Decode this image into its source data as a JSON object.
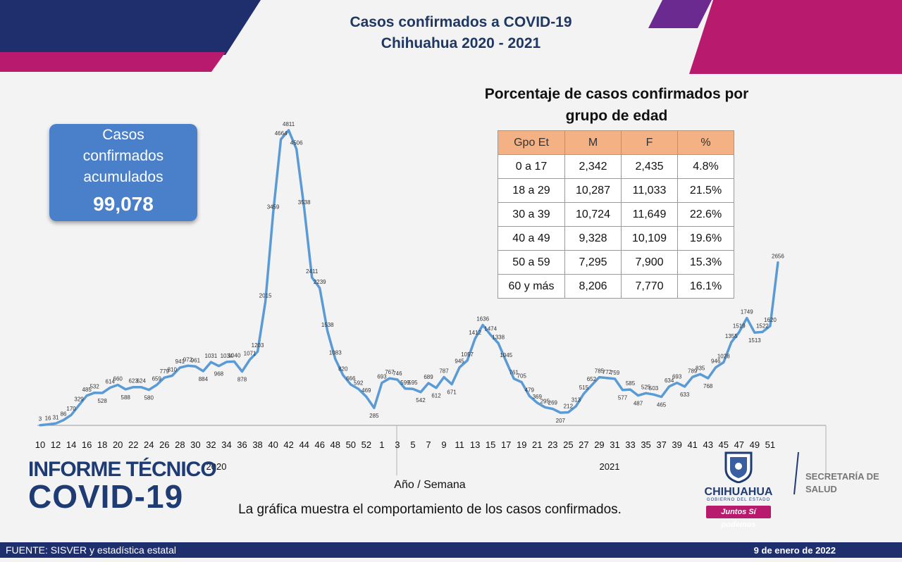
{
  "header": {
    "title_line1": "Casos confirmados a COVID-19",
    "title_line2": "Chihuahua 2020 - 2021"
  },
  "summary": {
    "label_line1": "Casos",
    "label_line2": "confirmados",
    "label_line3": "acumulados",
    "value": "99,078"
  },
  "age_table": {
    "title_line1": "Porcentaje de casos confirmados por",
    "title_line2": "grupo de edad",
    "headers": [
      "Gpo Et",
      "M",
      "F",
      "%"
    ],
    "rows": [
      [
        "0 a 17",
        "2,342",
        "2,435",
        "4.8%"
      ],
      [
        "18 a 29",
        "10,287",
        "11,033",
        "21.5%"
      ],
      [
        "30 a 39",
        "10,724",
        "11,649",
        "22.6%"
      ],
      [
        "40 a 49",
        "9,328",
        "10,109",
        "19.6%"
      ],
      [
        "50 a 59",
        "7,295",
        "7,900",
        "15.3%"
      ],
      [
        "60 y más",
        "8,206",
        "7,770",
        "16.1%"
      ]
    ]
  },
  "chart_data": {
    "type": "line",
    "series": [
      {
        "values": [
          3,
          16,
          31,
          86,
          170,
          329,
          485,
          532,
          528,
          614,
          660,
          588,
          623,
          624,
          580,
          659,
          779,
          810,
          941,
          972,
          961,
          884,
          1031,
          968,
          1034,
          1040,
          878,
          1071,
          1203,
          2015,
          3459,
          4664,
          4811,
          4506,
          3538,
          2411,
          2239,
          1538,
          1083,
          820,
          666,
          592,
          469,
          285,
          693,
          767,
          746,
          599,
          595,
          542,
          689,
          612,
          787,
          671,
          945,
          1057,
          1412,
          1636,
          1474,
          1338,
          1045,
          761,
          705,
          479,
          369,
          295,
          269,
          207,
          212,
          313,
          515,
          652,
          785,
          772,
          759,
          577,
          585,
          487,
          525,
          503,
          465,
          634,
          693,
          633,
          789,
          835,
          768,
          946,
          1028,
          1355,
          1519,
          1749,
          1513,
          1522,
          1620,
          2656
        ],
        "color": "#5b9bd5"
      }
    ],
    "x_ticks": [
      "10",
      "12",
      "14",
      "16",
      "18",
      "20",
      "22",
      "24",
      "26",
      "28",
      "30",
      "32",
      "34",
      "36",
      "38",
      "40",
      "42",
      "44",
      "46",
      "48",
      "50",
      "52",
      "1",
      "3",
      "5",
      "7",
      "9",
      "11",
      "13",
      "15",
      "17",
      "19",
      "21",
      "23",
      "25",
      "27",
      "29",
      "31",
      "33",
      "35",
      "37",
      "39",
      "41",
      "43",
      "45",
      "47",
      "49",
      "51"
    ],
    "year_labels": [
      "2020",
      "2021"
    ],
    "xlabel": "Año / Semana",
    "ylim": [
      0,
      4811
    ]
  },
  "caption": "La gráfica muestra el comportamiento de los casos confirmados.",
  "report_brand": {
    "line1": "INFORME TÉCNICO",
    "line2": "COVID-19"
  },
  "logos": {
    "state_name": "CHIHUAHUA",
    "state_sub": "GOBIERNO DEL ESTADO",
    "slogan": "Juntos Sí podemos",
    "ministry_line1": "SECRETARÍA DE",
    "ministry_line2": "SALUD"
  },
  "footer": {
    "source": "FUENTE: SISVER y estadística estatal",
    "date": "9 de enero de 2022"
  },
  "colors": {
    "navy": "#1f2f6d",
    "magenta": "#b81b6e",
    "line": "#5b9bd5",
    "table_header": "#f4b183",
    "summary_box": "#4a7fc9"
  }
}
